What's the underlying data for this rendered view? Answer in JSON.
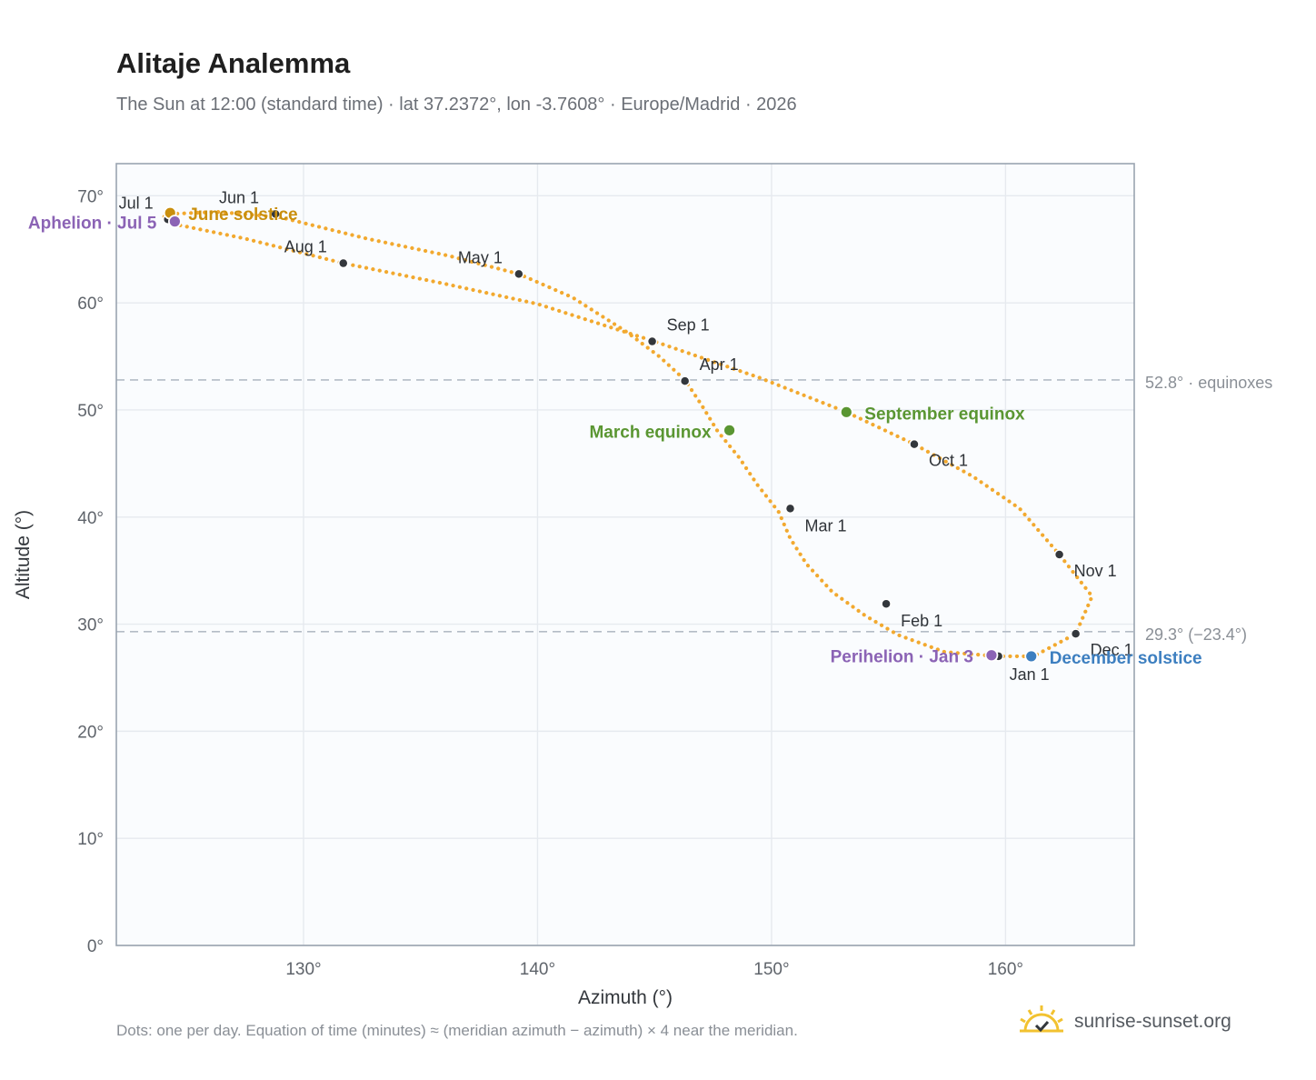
{
  "header": {
    "title": "Alitaje Analemma",
    "subtitle": "The Sun at 12:00 (standard time) · lat 37.2372°, lon -3.7608° · Europe/Madrid · 2026"
  },
  "footer": {
    "note": "Dots: one per day. Equation of time (minutes) ≈ (meridian azimuth − azimuth) × 4 near the meridian.",
    "brand": "sunrise-sunset.org",
    "brand_icon": "sun-check-icon"
  },
  "chart_data": {
    "type": "scatter",
    "title": "Alitaje Analemma",
    "xlabel": "Azimuth (°)",
    "ylabel": "Altitude (°)",
    "xlim": [
      122,
      165.5
    ],
    "ylim": [
      0,
      73
    ],
    "xticks": [
      {
        "v": 130,
        "label": "130°"
      },
      {
        "v": 140,
        "label": "140°"
      },
      {
        "v": 150,
        "label": "150°"
      },
      {
        "v": 160,
        "label": "160°"
      }
    ],
    "yticks": [
      {
        "v": 0,
        "label": "0°"
      },
      {
        "v": 10,
        "label": "10°"
      },
      {
        "v": 20,
        "label": "20°"
      },
      {
        "v": 30,
        "label": "30°"
      },
      {
        "v": 40,
        "label": "40°"
      },
      {
        "v": 50,
        "label": "50°"
      },
      {
        "v": 60,
        "label": "60°"
      },
      {
        "v": 70,
        "label": "70°"
      }
    ],
    "grid": true,
    "colors": {
      "path": "#f2a92f",
      "month_marker": "#33373c",
      "june": "#c98f0e",
      "equinox": "#5a9632",
      "december": "#3d7fc0",
      "apsis": "#8b63b5",
      "reference": "#b4bcc6",
      "plot_bg": "#fafcfe",
      "frame": "#9aa4b0"
    },
    "path": [
      [
        159.7,
        27.0
      ],
      [
        157.4,
        27.4
      ],
      [
        155.4,
        29.0
      ],
      [
        154.0,
        30.8
      ],
      [
        152.6,
        33.0
      ],
      [
        151.5,
        35.6
      ],
      [
        150.8,
        38.0
      ],
      [
        150.3,
        40.5
      ],
      [
        149.4,
        43.0
      ],
      [
        148.6,
        45.6
      ],
      [
        147.7,
        48.0
      ],
      [
        147.0,
        50.5
      ],
      [
        146.3,
        52.8
      ],
      [
        145.2,
        55.0
      ],
      [
        143.8,
        57.3
      ],
      [
        141.5,
        60.5
      ],
      [
        139.2,
        62.7
      ],
      [
        136.2,
        64.4
      ],
      [
        132.7,
        66.0
      ],
      [
        129.0,
        68.0
      ],
      [
        126.3,
        68.5
      ],
      [
        124.3,
        68.3
      ],
      [
        124.0,
        68.0
      ],
      [
        124.2,
        67.7
      ],
      [
        124.6,
        67.3
      ],
      [
        127.5,
        66.0
      ],
      [
        131.7,
        63.7
      ],
      [
        136.0,
        61.8
      ],
      [
        140.0,
        59.9
      ],
      [
        145.0,
        56.4
      ],
      [
        149.5,
        53.0
      ],
      [
        153.2,
        49.8
      ],
      [
        156.1,
        46.8
      ],
      [
        158.6,
        43.8
      ],
      [
        160.6,
        40.8
      ],
      [
        162.3,
        36.5
      ],
      [
        163.7,
        32.6
      ],
      [
        163.0,
        29.1
      ],
      [
        161.2,
        27.0
      ],
      [
        159.7,
        27.0
      ]
    ],
    "months": [
      {
        "label": "Jan 1",
        "az": 159.7,
        "alt": 27.0
      },
      {
        "label": "Feb 1",
        "az": 154.9,
        "alt": 31.9
      },
      {
        "label": "Mar 1",
        "az": 150.8,
        "alt": 40.8
      },
      {
        "label": "Apr 1",
        "az": 146.3,
        "alt": 52.7
      },
      {
        "label": "May 1",
        "az": 139.2,
        "alt": 62.7
      },
      {
        "label": "Jun 1",
        "az": 128.8,
        "alt": 68.3
      },
      {
        "label": "Jul 1",
        "az": 124.2,
        "alt": 67.8
      },
      {
        "label": "Aug 1",
        "az": 131.7,
        "alt": 63.7
      },
      {
        "label": "Sep 1",
        "az": 144.9,
        "alt": 56.4
      },
      {
        "label": "Oct 1",
        "az": 156.1,
        "alt": 46.8
      },
      {
        "label": "Nov 1",
        "az": 162.3,
        "alt": 36.5
      },
      {
        "label": "Dec 1",
        "az": 163.0,
        "alt": 29.1
      }
    ],
    "events": [
      {
        "label": "June solstice",
        "az": 124.3,
        "alt": 68.4,
        "color": "#c98f0e"
      },
      {
        "label": "Aphelion · Jul 5",
        "az": 124.5,
        "alt": 67.6,
        "color": "#8b63b5"
      },
      {
        "label": "March equinox",
        "az": 148.2,
        "alt": 48.1,
        "color": "#5a9632"
      },
      {
        "label": "September equinox",
        "az": 153.2,
        "alt": 49.8,
        "color": "#5a9632"
      },
      {
        "label": "Perihelion · Jan 3",
        "az": 159.4,
        "alt": 27.1,
        "color": "#8b63b5"
      },
      {
        "label": "December solstice",
        "az": 161.1,
        "alt": 27.0,
        "color": "#3d7fc0"
      }
    ],
    "reference_lines": [
      {
        "alt": 52.8,
        "label": "52.8° · equinoxes"
      },
      {
        "alt": 29.3,
        "label": "29.3° (−23.4°)"
      }
    ]
  }
}
